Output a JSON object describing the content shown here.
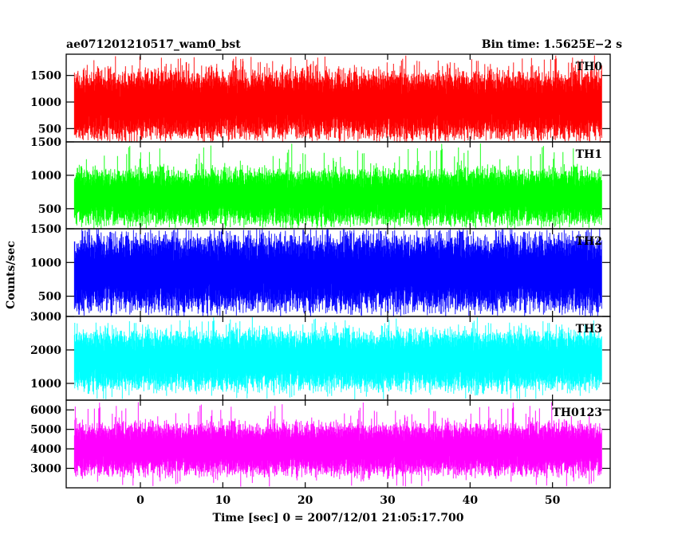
{
  "header": {
    "left": "ae071201210517_wam0_bst",
    "right": "Bin time: 1.5625E−2 s"
  },
  "chart_data": {
    "type": "line",
    "xlabel": "Time [sec] 0 = 2007/12/01 21:05:17.700",
    "ylabel": "Counts/sec",
    "xlim": [
      -9,
      57
    ],
    "x_range": [
      -8,
      56
    ],
    "x_ticks": [
      0,
      10,
      20,
      30,
      40,
      50
    ],
    "grid": false,
    "series": [
      {
        "name": "TH0",
        "color": "#ff0000",
        "ylim": [
          250,
          1900
        ],
        "y_ticks": [
          500,
          1000,
          1500
        ],
        "band": [
          350,
          1650
        ],
        "spike_max": 1880,
        "spike_min": 260,
        "mean": 950
      },
      {
        "name": "TH1",
        "color": "#00ff00",
        "ylim": [
          200,
          1500
        ],
        "y_ticks": [
          500,
          1000,
          1500
        ],
        "band": [
          300,
          1150
        ],
        "spike_max": 1480,
        "spike_min": 220,
        "mean": 680
      },
      {
        "name": "TH2",
        "color": "#0000ff",
        "ylim": [
          200,
          1500
        ],
        "y_ticks": [
          500,
          1000,
          1500
        ],
        "band": [
          300,
          1450
        ],
        "spike_max": 1500,
        "spike_min": 210,
        "mean": 850
      },
      {
        "name": "TH3",
        "color": "#00ffff",
        "ylim": [
          500,
          3000
        ],
        "y_ticks": [
          1000,
          2000,
          3000
        ],
        "band": [
          800,
          2600
        ],
        "spike_max": 2980,
        "spike_min": 520,
        "mean": 1700
      },
      {
        "name": "TH0123",
        "color": "#ff00ff",
        "ylim": [
          2000,
          6500
        ],
        "y_ticks": [
          3000,
          4000,
          5000,
          6000
        ],
        "band": [
          2700,
          5400
        ],
        "spike_max": 6400,
        "spike_min": 2050,
        "mean": 4000
      }
    ]
  }
}
